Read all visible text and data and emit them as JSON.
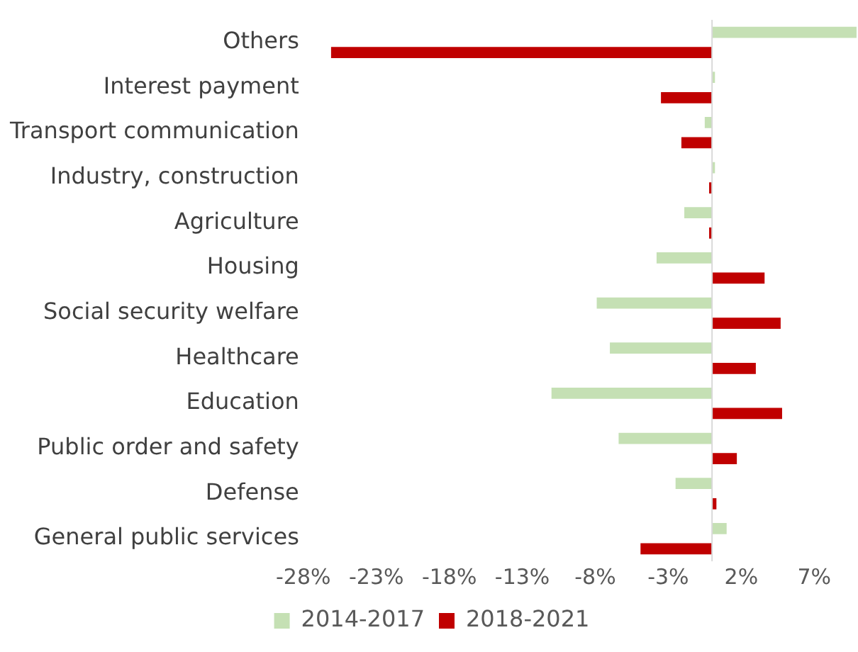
{
  "chart_data": {
    "type": "bar",
    "orientation": "horizontal",
    "categories": [
      "Others",
      "Interest payment",
      "Transport communication",
      "Industry, construction",
      "Agriculture",
      "Housing",
      "Social security welfare",
      "Healthcare",
      "Education",
      "Public order and safety",
      "Defense",
      "General public services"
    ],
    "series": [
      {
        "name": "2014-2017",
        "color": "#c5e0b4",
        "values": [
          9.9,
          0.2,
          -0.5,
          0.2,
          -1.9,
          -3.8,
          -7.9,
          -7.0,
          -11.0,
          -6.4,
          -2.5,
          1.0
        ]
      },
      {
        "name": "2018-2021",
        "color": "#c00000",
        "values": [
          -26.1,
          -3.5,
          -2.1,
          -0.2,
          -0.2,
          3.6,
          4.7,
          3.0,
          4.8,
          1.7,
          0.3,
          -4.9
        ]
      }
    ],
    "xlim": [
      -28,
      10
    ],
    "xticks": [
      {
        "value": -28,
        "label": "-28%"
      },
      {
        "value": -23,
        "label": "-23%"
      },
      {
        "value": -18,
        "label": "-18%"
      },
      {
        "value": -13,
        "label": "-13%"
      },
      {
        "value": -8,
        "label": "-8%"
      },
      {
        "value": -3,
        "label": "-3%"
      },
      {
        "value": 2,
        "label": "2%"
      },
      {
        "value": 7,
        "label": "7%"
      }
    ],
    "grid": false,
    "legend": "bottom"
  }
}
